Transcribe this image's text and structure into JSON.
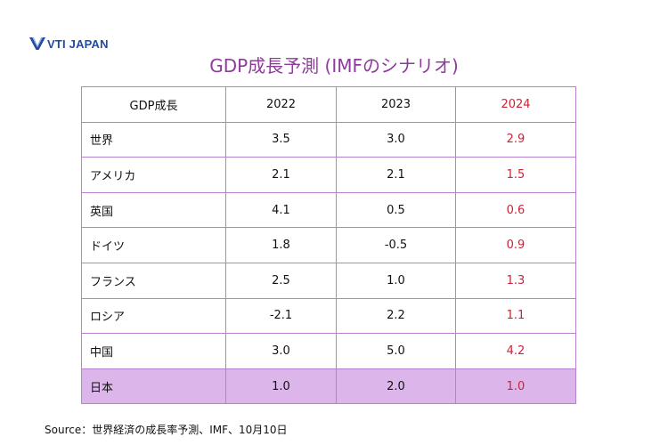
{
  "logo": {
    "text": "VTI JAPAN",
    "brand_color": "#1f4aa8"
  },
  "title": "GDP成長予測 (IMFのシナリオ)",
  "table": {
    "headers": [
      "GDP成長",
      "2022",
      "2023",
      "2024"
    ],
    "rows": [
      {
        "label": "世界",
        "y2022": "3.5",
        "y2023": "3.0",
        "y2024": "2.9"
      },
      {
        "label": "アメリカ",
        "y2022": "2.1",
        "y2023": "2.1",
        "y2024": "1.5"
      },
      {
        "label": "英国",
        "y2022": "4.1",
        "y2023": "0.5",
        "y2024": "0.6"
      },
      {
        "label": "ドイツ",
        "y2022": "1.8",
        "y2023": "-0.5",
        "y2024": "0.9"
      },
      {
        "label": "フランス",
        "y2022": "2.5",
        "y2023": "1.0",
        "y2024": "1.3"
      },
      {
        "label": "ロシア",
        "y2022": "-2.1",
        "y2023": "2.2",
        "y2024": "1.1"
      },
      {
        "label": "中国",
        "y2022": "3.0",
        "y2023": "5.0",
        "y2024": "4.2"
      },
      {
        "label": "日本",
        "y2022": "1.0",
        "y2023": "2.0",
        "y2024": "1.0"
      }
    ]
  },
  "source": "Source：世界経済の成長率予測、IMF、10月10日",
  "colors": {
    "title": "#8e3b9c",
    "border": "#b97fd0",
    "highlight_row": "#dcb6ea",
    "forecast_text": "#c8243a"
  }
}
